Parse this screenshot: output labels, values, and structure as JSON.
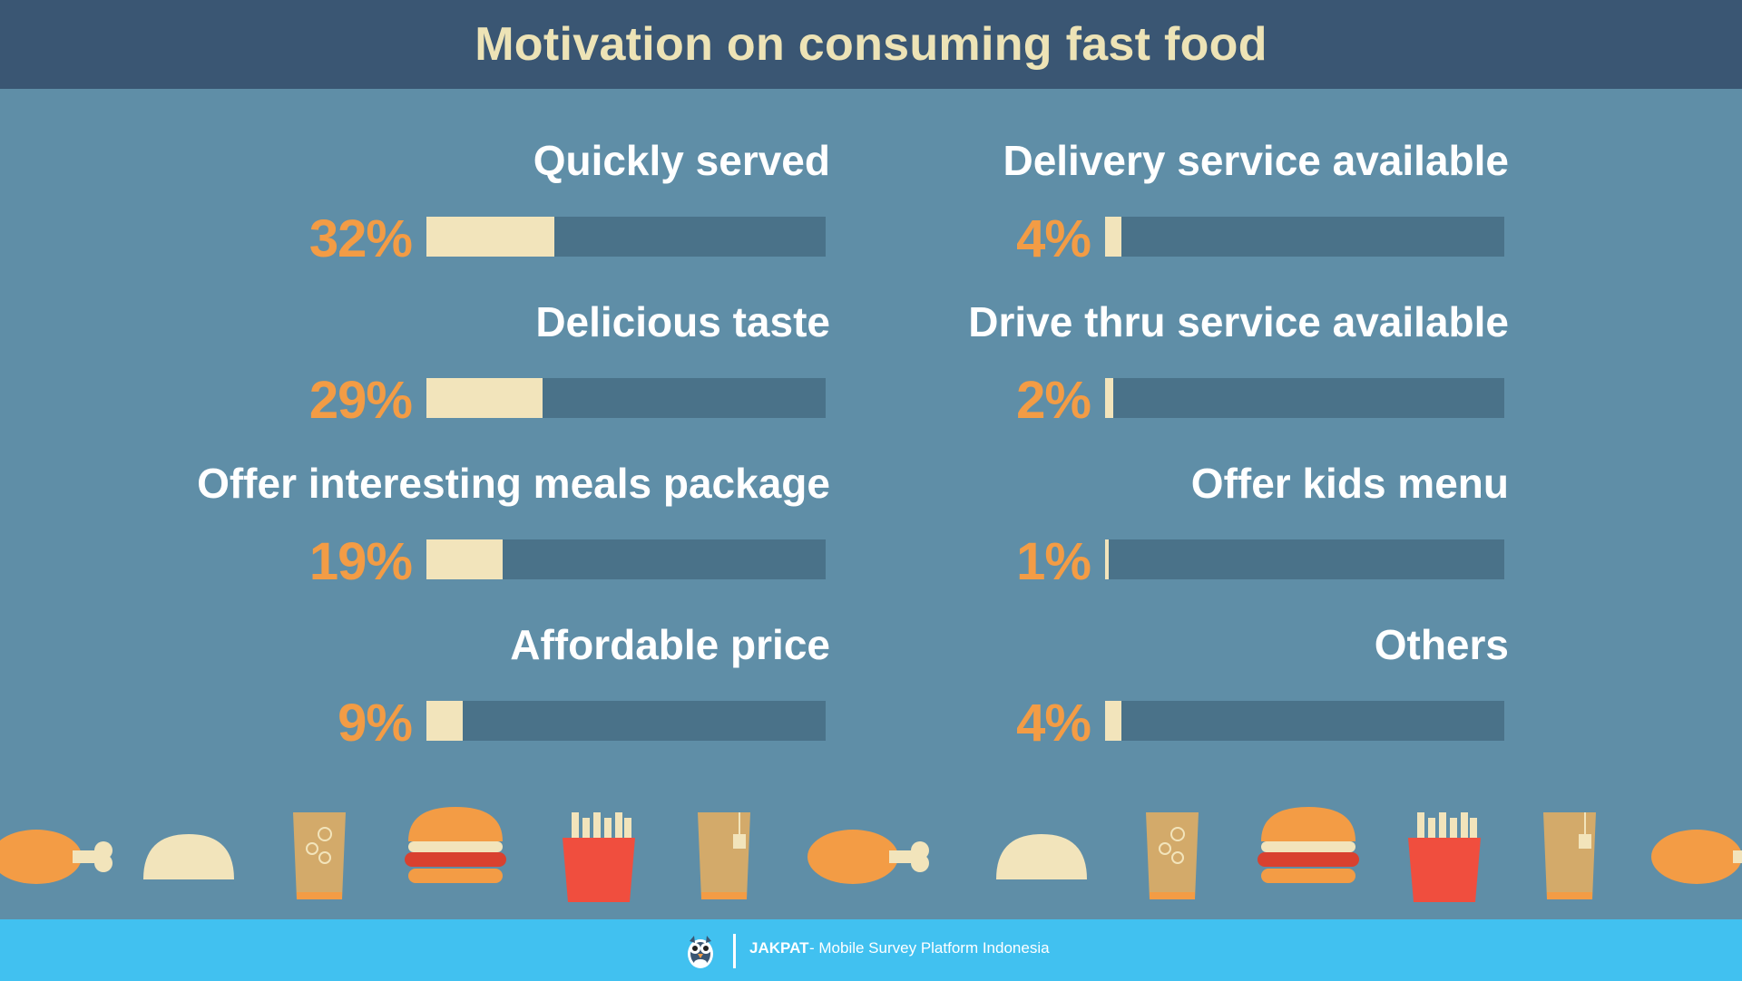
{
  "header": {
    "title": "Motivation on consuming fast food"
  },
  "chart_data": {
    "type": "bar",
    "orientation": "horizontal",
    "title": "Motivation on consuming fast food",
    "xlim": [
      0,
      100
    ],
    "unit": "%",
    "grid": false,
    "columns": [
      [
        {
          "label": "Quickly served",
          "value": 32,
          "display": "32%"
        },
        {
          "label": "Delicious taste",
          "value": 29,
          "display": "29%"
        },
        {
          "label": "Offer interesting meals package",
          "value": 19,
          "display": "19%"
        },
        {
          "label": "Affordable price",
          "value": 9,
          "display": "9%"
        }
      ],
      [
        {
          "label": "Delivery service available",
          "value": 4,
          "display": "4%"
        },
        {
          "label": "Drive thru service available",
          "value": 2,
          "display": "2%"
        },
        {
          "label": "Offer kids menu",
          "value": 1,
          "display": "1%"
        },
        {
          "label": "Others",
          "value": 4,
          "display": "4%"
        }
      ]
    ]
  },
  "colors": {
    "header_bg": "#3a5673",
    "background": "#5f8ea7",
    "title_text": "#ede3b6",
    "label_text": "#ffffff",
    "percent_text": "#f39c45",
    "bar_track": "#4a7289",
    "bar_fill": "#f2e4bb",
    "footer_bg": "#41c1f0"
  },
  "decoration": {
    "icons": [
      "chicken-drumstick-icon",
      "bun-icon",
      "soda-cup-icon",
      "burger-icon",
      "fries-icon",
      "tea-cup-icon",
      "chicken-drumstick-icon",
      "bun-icon",
      "soda-cup-icon",
      "burger-icon",
      "fries-icon",
      "tea-cup-icon",
      "chicken-drumstick-icon"
    ]
  },
  "footer": {
    "brand": "JAKPAT",
    "tagline": "- Mobile Survey Platform Indonesia",
    "logo_icon": "owl-logo-icon"
  }
}
